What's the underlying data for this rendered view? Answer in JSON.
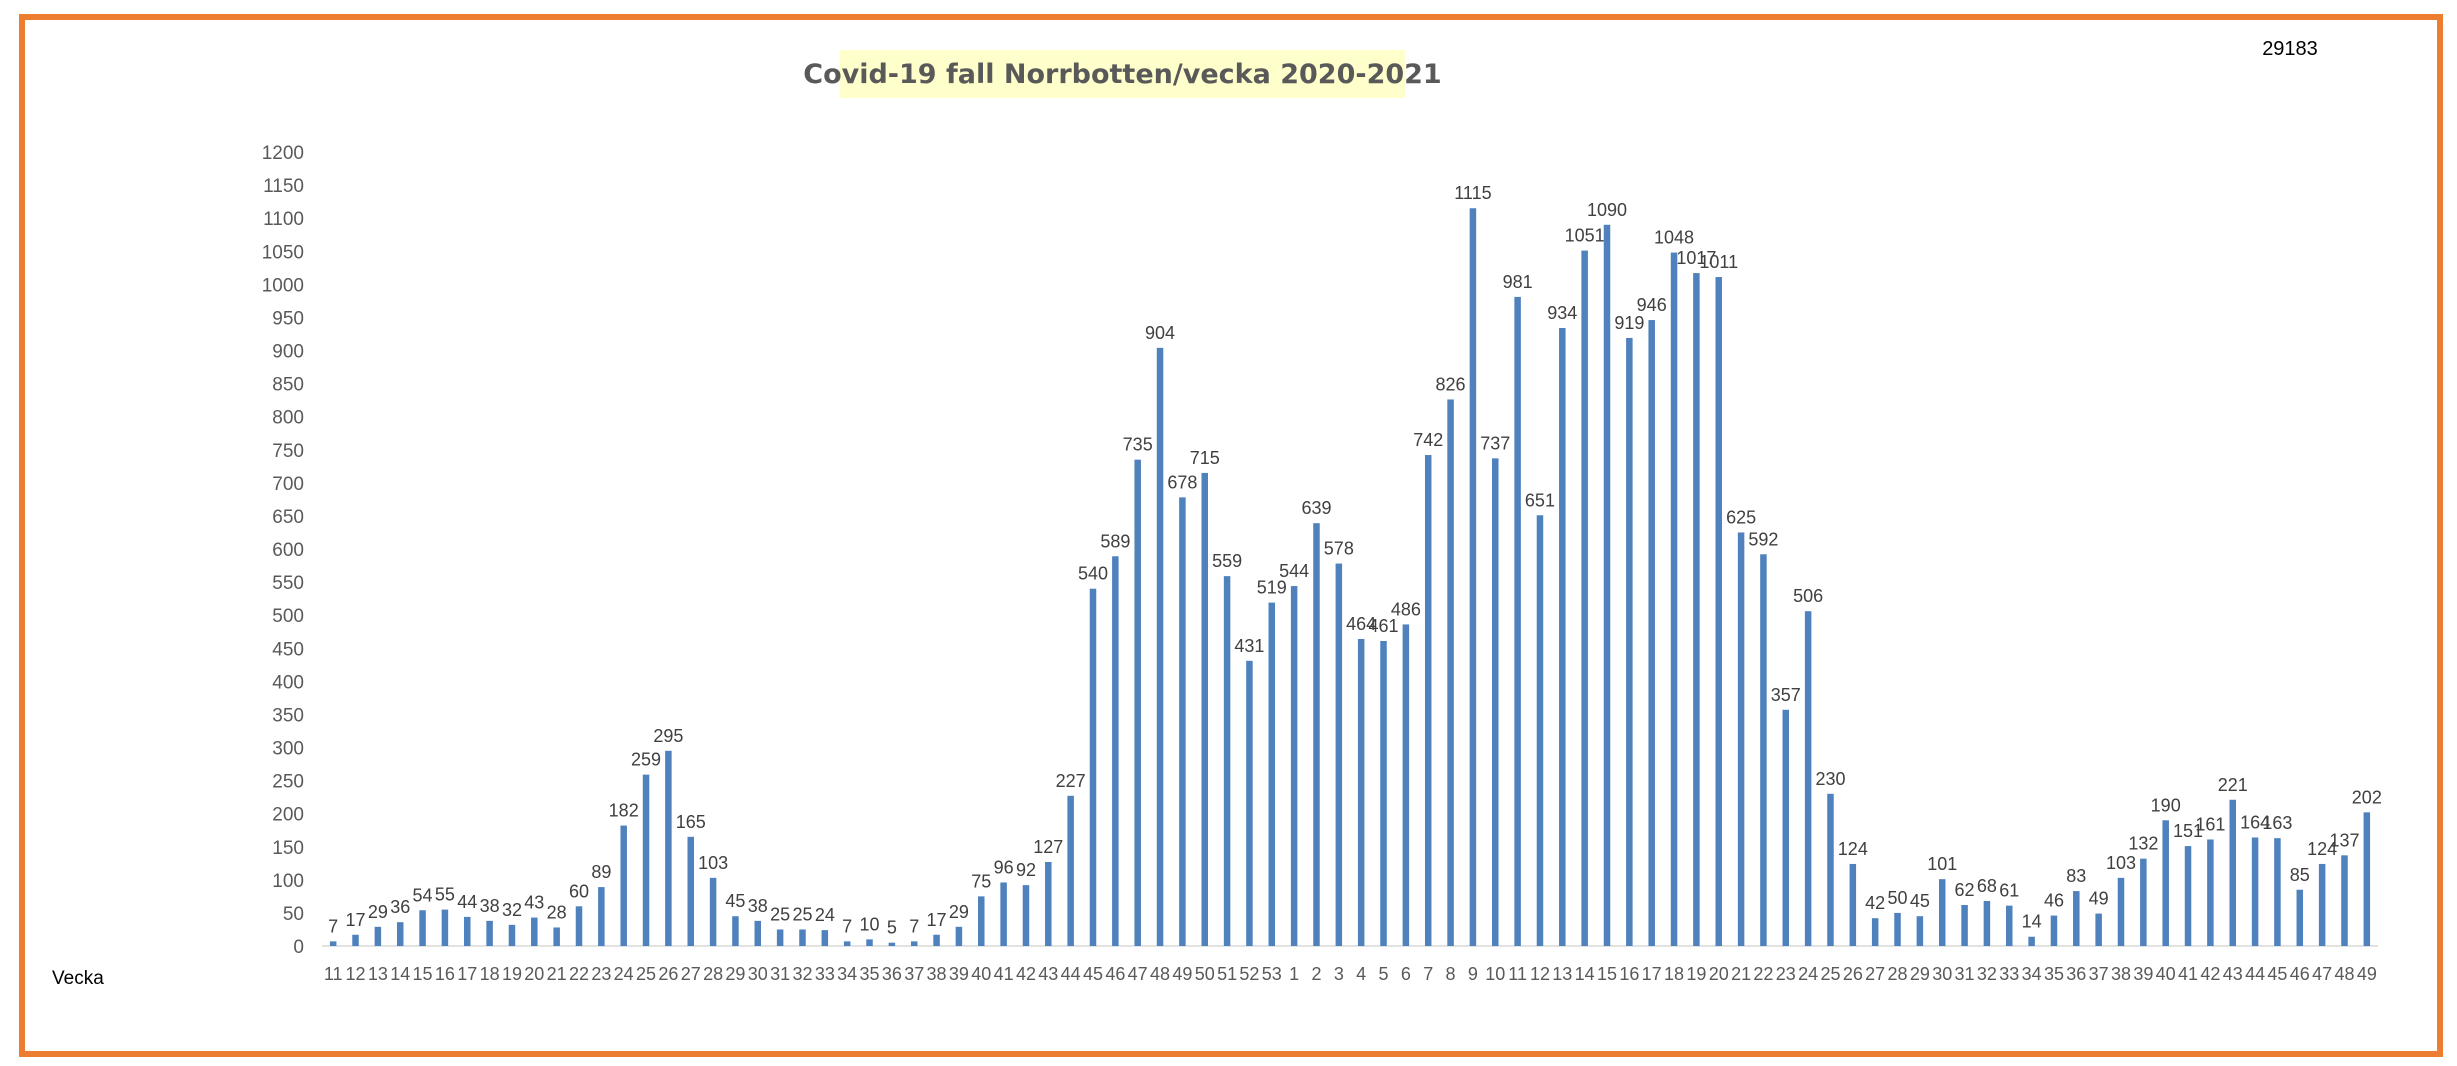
{
  "chart_data": {
    "type": "bar",
    "title": "Covid-19 fall Norrbotten/vecka 2020-2021",
    "total_label": "29183",
    "xlabel": "Vecka",
    "ylabel": "",
    "ylim": [
      0,
      1200
    ],
    "yticks": [
      0,
      50,
      100,
      150,
      200,
      250,
      300,
      350,
      400,
      450,
      500,
      550,
      600,
      650,
      700,
      750,
      800,
      850,
      900,
      950,
      1000,
      1050,
      1100,
      1150,
      1200
    ],
    "grid": false,
    "legend": "none",
    "bar_color": "#4F81BD",
    "categories": [
      "11",
      "12",
      "13",
      "14",
      "15",
      "16",
      "17",
      "18",
      "19",
      "20",
      "21",
      "22",
      "23",
      "24",
      "25",
      "26",
      "27",
      "28",
      "29",
      "30",
      "31",
      "32",
      "33",
      "34",
      "35",
      "36",
      "37",
      "38",
      "39",
      "40",
      "41",
      "42",
      "43",
      "44",
      "45",
      "46",
      "47",
      "48",
      "49",
      "50",
      "51",
      "52",
      "53",
      "1",
      "2",
      "3",
      "4",
      "5",
      "6",
      "7",
      "8",
      "9",
      "10",
      "11",
      "12",
      "13",
      "14",
      "15",
      "16",
      "17",
      "18",
      "19",
      "20",
      "21",
      "22",
      "23",
      "24",
      "25",
      "26",
      "27",
      "28",
      "29",
      "30",
      "31",
      "32",
      "33",
      "34",
      "35",
      "36",
      "37",
      "38",
      "39",
      "40",
      "41",
      "42",
      "43",
      "44",
      "45",
      "46",
      "47",
      "48",
      "49"
    ],
    "values": [
      7,
      17,
      29,
      36,
      54,
      55,
      44,
      38,
      32,
      43,
      28,
      60,
      89,
      182,
      259,
      295,
      165,
      103,
      45,
      38,
      25,
      25,
      24,
      7,
      10,
      5,
      7,
      17,
      29,
      75,
      96,
      92,
      127,
      227,
      540,
      589,
      735,
      904,
      678,
      715,
      559,
      431,
      519,
      544,
      639,
      578,
      464,
      461,
      486,
      742,
      826,
      1115,
      737,
      981,
      651,
      934,
      1051,
      1090,
      919,
      946,
      1048,
      1017,
      1011,
      625,
      592,
      357,
      506,
      230,
      124,
      42,
      50,
      45,
      101,
      62,
      68,
      61,
      14,
      46,
      83,
      49,
      103,
      132,
      190,
      151,
      161,
      221,
      164,
      163,
      85,
      124,
      137,
      202
    ]
  }
}
